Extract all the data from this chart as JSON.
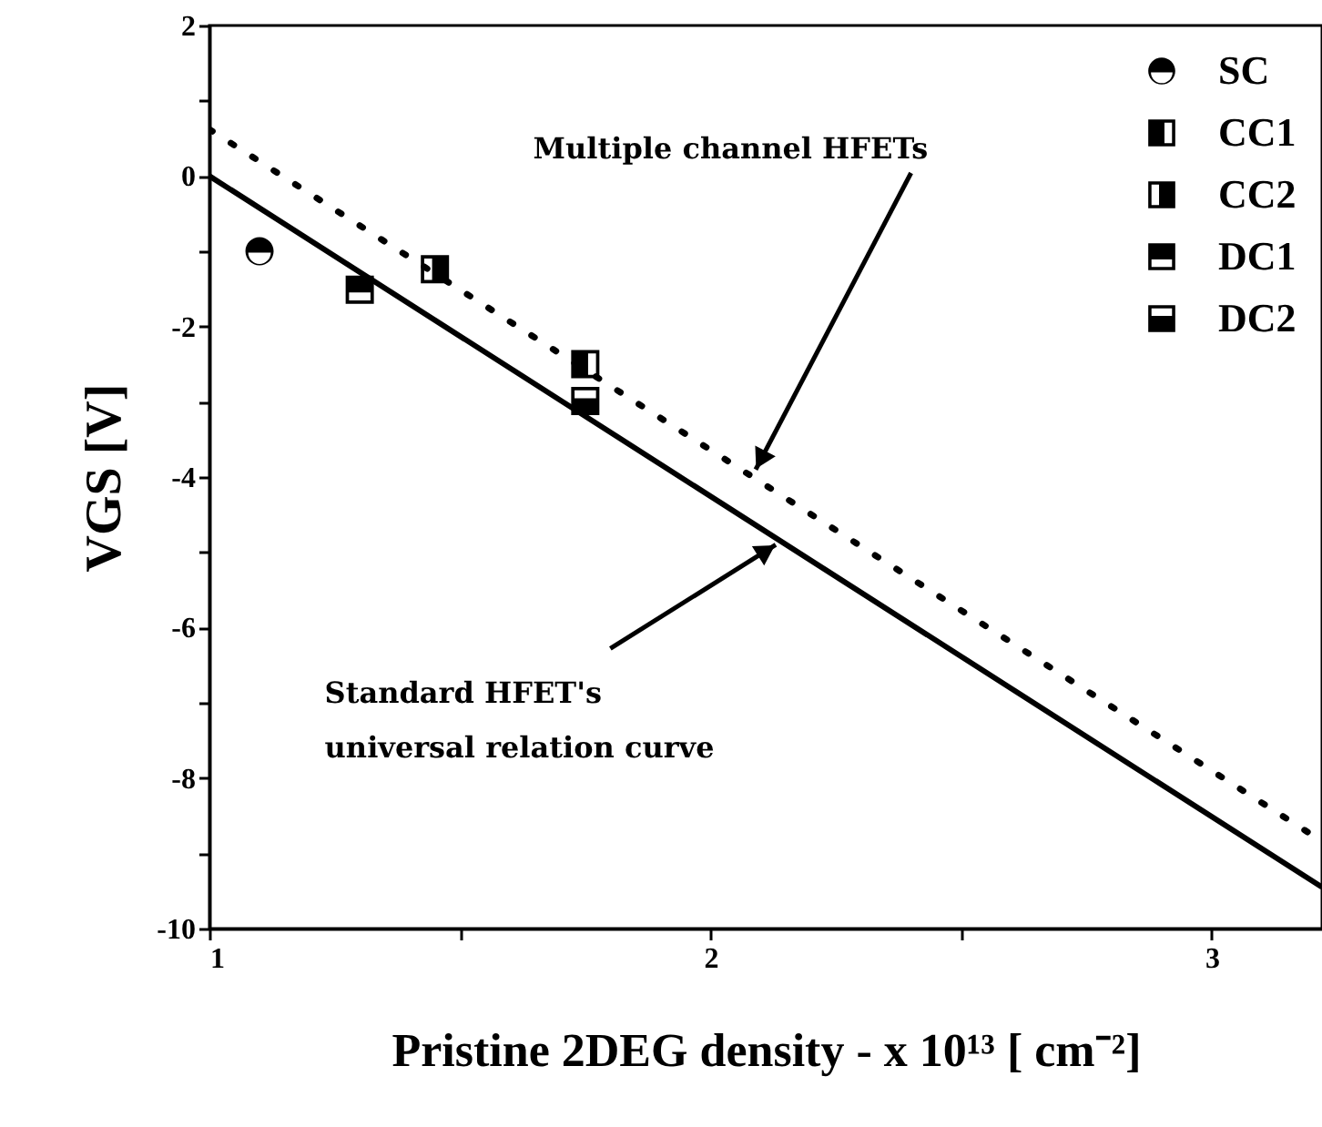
{
  "chart_data": {
    "type": "scatter",
    "xlabel": "Pristine 2DEG density - x 10¹³ [ cm⁻²]",
    "ylabel": "VGS [V]",
    "xlim": [
      1,
      3.22
    ],
    "xticks": [
      1,
      {
        "value": 1.5,
        "label": null
      },
      2,
      {
        "value": 2.5,
        "label": null
      },
      3
    ],
    "ylim": [
      -10,
      2
    ],
    "yticks": [
      -10,
      {
        "value": -9,
        "label": null
      },
      -8,
      {
        "value": -7,
        "label": null
      },
      -6,
      {
        "value": -5,
        "label": null
      },
      -4,
      {
        "value": -3,
        "label": null
      },
      -2,
      {
        "value": -1,
        "label": null
      },
      0,
      {
        "value": 1,
        "label": null
      },
      2
    ],
    "grid": false,
    "legend": "top right",
    "series": [
      {
        "name": "SC",
        "color": "#000000",
        "marker": "circle",
        "x": [
          1.1
        ],
        "values": [
          -1.0
        ]
      },
      {
        "name": "CC1",
        "color": "#000000",
        "marker": "square",
        "x": [
          1.75
        ],
        "values": [
          -2.5
        ]
      },
      {
        "name": "CC2",
        "color": "#000000",
        "marker": "square",
        "x": [
          1.45
        ],
        "values": [
          -1.24
        ]
      },
      {
        "name": "DC1",
        "color": "#000000",
        "marker": "square",
        "x": [
          1.3
        ],
        "values": [
          -1.51
        ]
      },
      {
        "name": "DC2",
        "color": "#000000",
        "marker": "square",
        "x": [
          1.75
        ],
        "values": [
          -2.99
        ]
      },
      {
        "type": "line",
        "color": "#000000",
        "line_style": "solid",
        "x": [
          1,
          3.22
        ],
        "values": [
          0,
          -9.45
        ]
      },
      {
        "type": "line",
        "color": "#000000",
        "line_style": "dotted",
        "x": [
          1,
          3.22
        ],
        "values": [
          0.62,
          -8.84
        ]
      }
    ],
    "annotations": [
      {
        "text": "Multiple channel HFETs",
        "x": 2.09,
        "y": -3.9
      },
      {
        "text": "Standard HFET's\nuniversal relation curve",
        "x": 2.13,
        "y": -4.9
      }
    ]
  }
}
